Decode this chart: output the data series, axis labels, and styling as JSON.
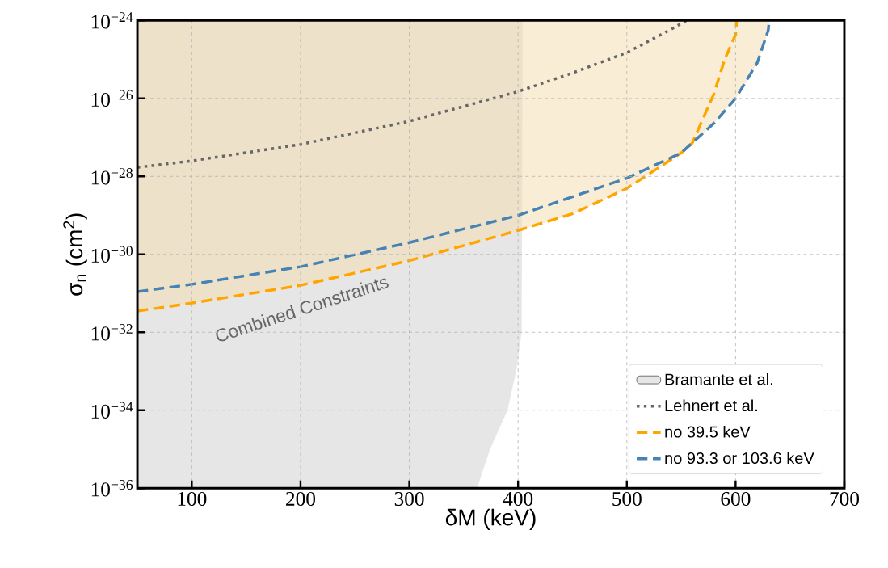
{
  "chart_data": {
    "type": "line",
    "xlabel": "δM (keV)",
    "ylabel": "σ$_{n}$ (cm$^{2}$)",
    "xlim": [
      50,
      700
    ],
    "xticks": [
      100,
      200,
      300,
      400,
      500,
      600,
      700
    ],
    "ylim": [
      1e-36,
      1e-24
    ],
    "yticks": [
      {
        "value": 1e-36,
        "label": "10$^{−36}$"
      },
      {
        "value": 1e-34,
        "label": "10$^{−34}$"
      },
      {
        "value": 1e-32,
        "label": "10$^{−32}$"
      },
      {
        "value": 1e-30,
        "label": "10$^{−30}$"
      },
      {
        "value": 1e-28,
        "label": "10$^{−28}$"
      },
      {
        "value": 1e-26,
        "label": "10$^{−26}$"
      },
      {
        "value": 1e-24,
        "label": "10$^{−24}$"
      }
    ],
    "log": "y",
    "grid": true,
    "legend": "bottom right",
    "annotations": [
      "Combined Constraints"
    ],
    "series": [
      {
        "name": "Bramante et al.",
        "type": "area",
        "color": "#e6e6e6",
        "x": [
          50,
          50,
          362,
          374,
          390,
          398,
          403,
          404
        ],
        "values": [
          1e-24,
          1e-36,
          1e-36,
          1e-35,
          1e-34,
          1e-33,
          1e-32,
          1e-24
        ]
      },
      {
        "type": "area",
        "color": "#faedd5",
        "x": [
          50,
          50,
          100,
          200,
          300,
          400,
          450,
          500,
          550,
          560,
          580,
          600,
          620,
          630,
          631
        ],
        "values": [
          1e-24,
          3.5e-32,
          5.6e-32,
          1.6e-31,
          6.9e-31,
          4.1e-30,
          1.1e-29,
          4.9e-29,
          4e-28,
          7e-28,
          2.3e-27,
          1e-26,
          8.3e-26,
          5.6e-25,
          1e-24
        ]
      },
      {
        "name": "Lehnert et al.",
        "line_style": "dotted",
        "color": "#666666",
        "x": [
          50,
          100,
          200,
          300,
          400,
          450,
          500,
          540,
          555
        ],
        "values": [
          1.7e-28,
          2.5e-28,
          6.6e-28,
          2.6e-27,
          1.5e-26,
          4.5e-26,
          1.5e-25,
          5.8e-25,
          1e-24
        ]
      },
      {
        "name": "no 39.5 keV",
        "line_style": "dashed",
        "color": "#ffa500",
        "x": [
          50,
          100,
          200,
          300,
          400,
          450,
          500,
          550,
          560,
          580,
          590,
          600,
          601
        ],
        "values": [
          3.5e-32,
          5.6e-32,
          1.6e-31,
          6.9e-31,
          4.1e-30,
          1.1e-29,
          4.9e-29,
          4e-28,
          7e-28,
          1.3e-26,
          1e-25,
          4.3e-25,
          1e-24
        ]
      },
      {
        "name": "no 93.3 or 103.6 keV",
        "line_style": "dashed",
        "color": "#4682b4",
        "x": [
          50,
          100,
          200,
          300,
          400,
          500,
          550,
          580,
          600,
          620,
          630,
          631
        ],
        "values": [
          1.1e-31,
          1.7e-31,
          4.8e-31,
          2e-30,
          1e-29,
          9e-29,
          4e-28,
          2.3e-27,
          1e-26,
          8.3e-26,
          5.6e-25,
          1e-24
        ]
      }
    ]
  }
}
